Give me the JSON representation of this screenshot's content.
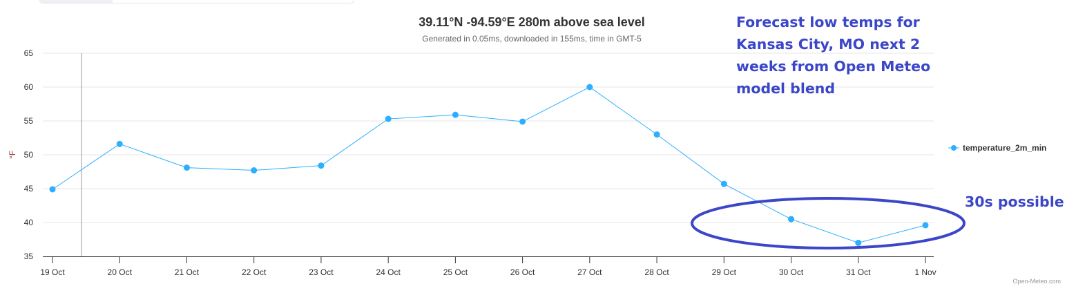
{
  "header": {
    "title": "39.11°N -94.59°E 280m above sea level",
    "subtitle": "Generated in 0.05ms, downloaded in 155ms, time in GMT-5"
  },
  "annotations": {
    "main": "Forecast low temps for Kansas City, MO next 2 weeks from Open Meteo model blend",
    "callout": "30s possible"
  },
  "credit": "Open-Meteo.com",
  "colors": {
    "series": "#2caffe",
    "annotation": "#3b46c8",
    "grid": "#e6e6e6"
  },
  "chart_data": {
    "type": "line",
    "title": "39.11°N -94.59°E 280m above sea level",
    "subtitle": "Generated in 0.05ms, downloaded in 155ms, time in GMT-5",
    "xlabel": "",
    "ylabel": "°F",
    "ylim": [
      35,
      65
    ],
    "yticks": [
      "35",
      "40",
      "45",
      "50",
      "55",
      "60",
      "65"
    ],
    "categories": [
      "19 Oct",
      "20 Oct",
      "21 Oct",
      "22 Oct",
      "23 Oct",
      "24 Oct",
      "25 Oct",
      "26 Oct",
      "27 Oct",
      "28 Oct",
      "29 Oct",
      "30 Oct",
      "31 Oct",
      "1 Nov"
    ],
    "series": [
      {
        "name": "temperature_2m_min",
        "values": [
          44.9,
          51.6,
          48.1,
          47.7,
          48.4,
          55.3,
          55.9,
          54.9,
          60.0,
          53.0,
          45.7,
          40.5,
          37.0,
          39.6
        ]
      }
    ],
    "grid": true,
    "legend": "right"
  }
}
